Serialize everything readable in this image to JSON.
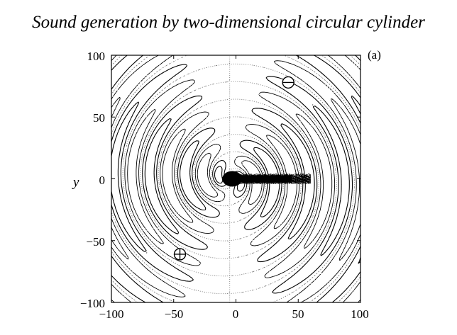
{
  "header": {
    "title": "Sound generation by two-dimensional circular cylinder"
  },
  "figure": {
    "panel_label": "(a)",
    "markers": {
      "negative_symbol": "⊖",
      "positive_symbol": "⊕"
    }
  },
  "chart_data": {
    "type": "contour",
    "title": "",
    "panel_label": "(a)",
    "xlabel": "",
    "ylabel": "y",
    "xlim": [
      -100,
      100
    ],
    "ylim": [
      -100,
      100
    ],
    "xticks": [
      "−100",
      "−50",
      "0",
      "50",
      "100"
    ],
    "yticks": [
      "100",
      "50",
      "0",
      "−50",
      "−100"
    ],
    "grid": false,
    "line_styles": {
      "positive": "solid",
      "negative": "dashed",
      "zero": "dotted"
    },
    "markers": [
      {
        "symbol": "minus-circle",
        "x": 42,
        "y": 78
      },
      {
        "symbol": "plus-circle",
        "x": -45,
        "y": -61
      }
    ],
    "cylinder_center": {
      "x": -5,
      "y": 0
    },
    "wake_extent_x": [
      0,
      60
    ]
  }
}
